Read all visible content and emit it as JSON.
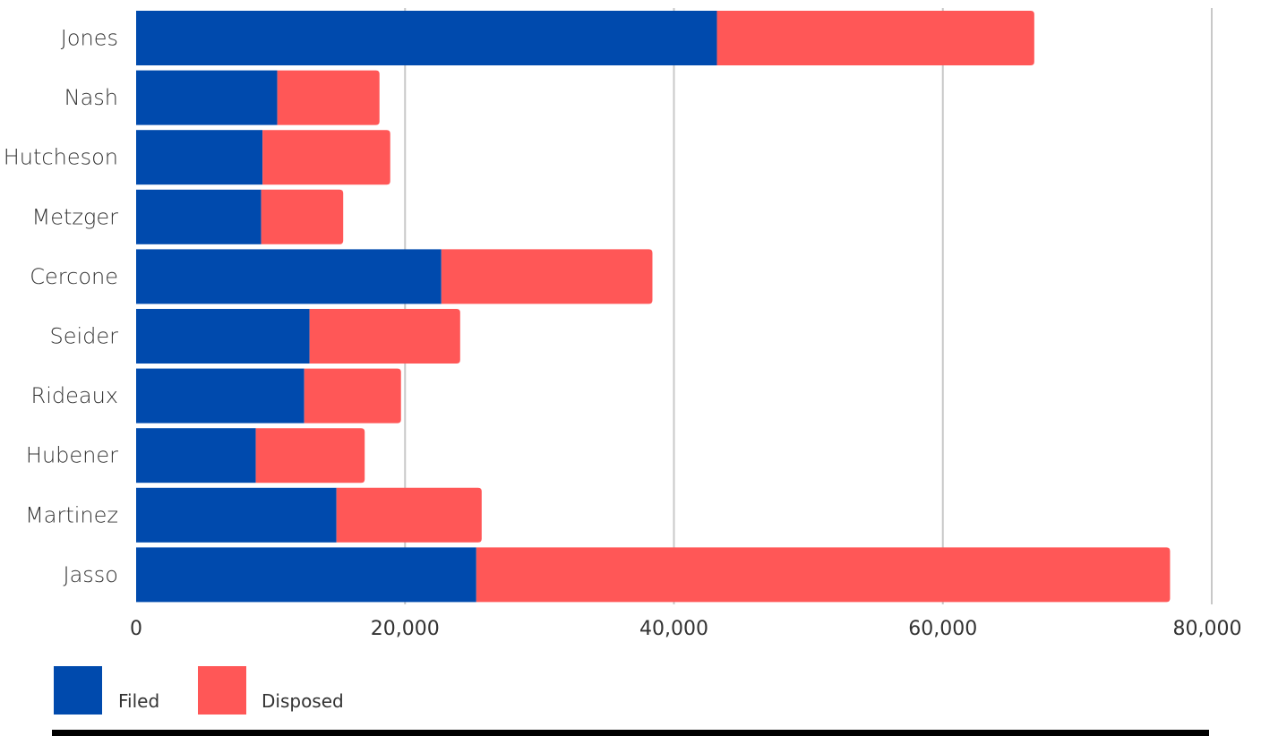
{
  "chart_data": {
    "type": "bar",
    "orientation": "horizontal",
    "stacked": true,
    "title": "",
    "xlabel": "",
    "ylabel": "",
    "categories": [
      "Jones",
      "Nash",
      "Hutcheson",
      "Metzger",
      "Cercone",
      "Seider",
      "Rideaux",
      "Hubener",
      "Martinez",
      "Jasso"
    ],
    "series": [
      {
        "name": "Filed",
        "color": "#004aad",
        "values": [
          43200,
          10500,
          9400,
          9300,
          22700,
          12900,
          12500,
          8900,
          14900,
          25300
        ]
      },
      {
        "name": "Disposed",
        "color": "#ff5757",
        "values": [
          23600,
          7600,
          9500,
          6100,
          15700,
          11200,
          7200,
          8100,
          10800,
          51600
        ]
      }
    ],
    "xlim": [
      0,
      80000
    ],
    "x_ticks": [
      "0",
      "20,000",
      "40,000",
      "60,000",
      "80,000"
    ],
    "x_tick_values": [
      0,
      20000,
      40000,
      60000,
      80000
    ],
    "grid": "vertical",
    "legend": "bottom-left"
  }
}
